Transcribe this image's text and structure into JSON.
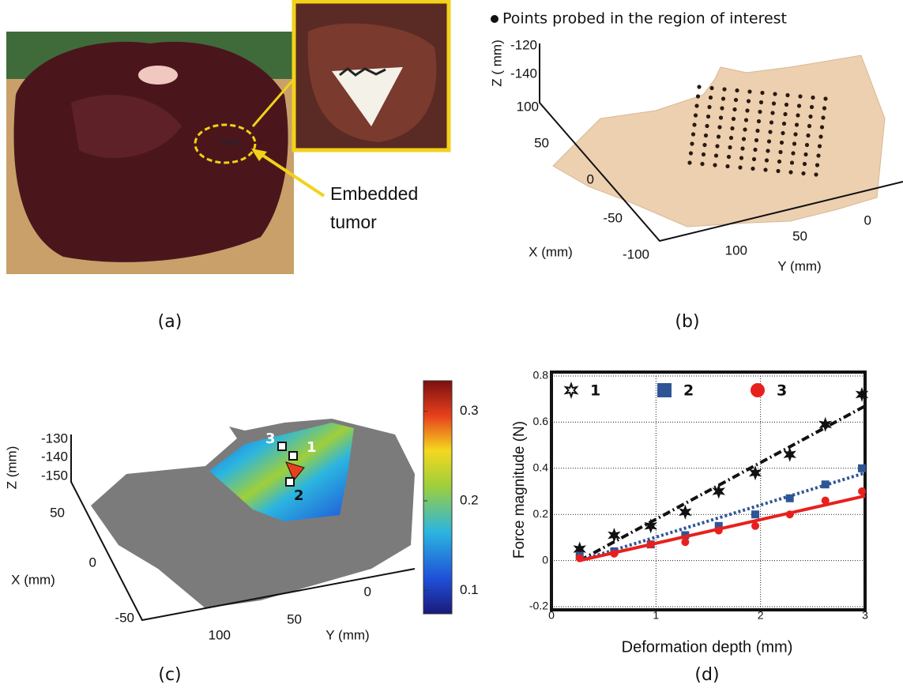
{
  "panels": {
    "a": {
      "caption": "(a)",
      "annotation": [
        "Embedded",
        "tumor"
      ]
    },
    "b": {
      "caption": "(b)",
      "legend": "Points probed in the region of interest",
      "zlabel": "Z ( mm)",
      "xlabel": "X (mm)",
      "ylabel": "Y (mm)",
      "zticks": [
        -120,
        -140
      ],
      "xticks": [
        100,
        50,
        0,
        -50,
        -100
      ],
      "yticks": [
        100,
        50,
        0
      ]
    },
    "c": {
      "caption": "(c)",
      "zlabel": "Z (mm)",
      "xlabel": "X (mm)",
      "ylabel": "Y (mm)",
      "zticks": [
        -130,
        -140,
        -150
      ],
      "xticks": [
        50,
        0,
        -50
      ],
      "yticks": [
        100,
        50,
        0
      ],
      "point_labels": [
        "1",
        "2",
        "3"
      ],
      "clim": [
        0.074,
        0.334
      ],
      "colorbar_ticks": [
        0.3,
        0.2,
        0.1
      ]
    }
  },
  "chart_data": {
    "type": "line",
    "caption": "(d)",
    "xlabel": "Deformation depth (mm)",
    "ylabel": "Force magnitude (N)",
    "xlim": [
      0,
      3
    ],
    "ylim": [
      -0.2,
      0.8
    ],
    "xticks": [
      0,
      1,
      2,
      3
    ],
    "yticks": [
      -0.2,
      0,
      0.2,
      0.4,
      0.6,
      0.8
    ],
    "grid": true,
    "x": [
      0.27,
      0.6,
      0.95,
      1.28,
      1.6,
      1.95,
      2.28,
      2.62,
      2.97
    ],
    "fit_x": [
      0.27,
      3
    ],
    "series": [
      {
        "name": "1",
        "color": "#111111",
        "marker": "star",
        "style": "dashdot",
        "values": [
          0.05,
          0.11,
          0.15,
          0.21,
          0.3,
          0.38,
          0.46,
          0.59,
          0.72
        ],
        "fit": [
          0,
          0.67
        ]
      },
      {
        "name": "2",
        "color": "#2f5597",
        "marker": "square",
        "style": "dotted",
        "values": [
          0.02,
          0.04,
          0.07,
          0.11,
          0.15,
          0.2,
          0.27,
          0.33,
          0.4
        ],
        "fit": [
          0,
          0.38
        ]
      },
      {
        "name": "3",
        "color": "#e8201d",
        "marker": "circle",
        "style": "solid",
        "values": [
          0.01,
          0.03,
          0.07,
          0.08,
          0.13,
          0.15,
          0.2,
          0.26,
          0.3
        ],
        "fit": [
          0,
          0.28
        ]
      }
    ]
  }
}
